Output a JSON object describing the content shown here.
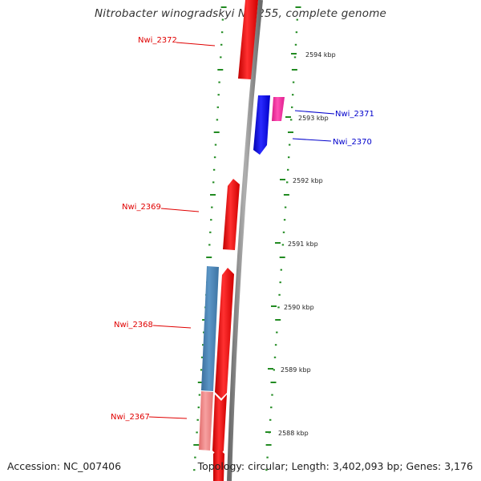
{
  "title": "Nitrobacter winogradskyi Nb-255, complete genome",
  "footer": {
    "accession": "Accession: NC_007406",
    "summary": "Topology: circular; Length: 3,402,093 bp; Genes: 3,176"
  },
  "colors": {
    "forward_gene": "#ff0000",
    "reverse_gene": "#0000ff",
    "pink_gene": "#ff2ea0",
    "steelblue_gene": "#4682b4",
    "lightred_gene": "#f08080",
    "backbone": "#7f7f7f",
    "ticks": "#228b22",
    "label_red": "#e00000",
    "label_blue": "#0000cc"
  },
  "scale": {
    "unit": "kbp",
    "ticks": [
      {
        "kbp": 2594,
        "label": "2594 kbp"
      },
      {
        "kbp": 2593,
        "label": "2593 kbp"
      },
      {
        "kbp": 2592,
        "label": "2592 kbp"
      },
      {
        "kbp": 2591,
        "label": "2591 kbp"
      },
      {
        "kbp": 2590,
        "label": "2590 kbp"
      },
      {
        "kbp": 2589,
        "label": "2589 kbp"
      },
      {
        "kbp": 2588,
        "label": "2588 kbp"
      }
    ]
  },
  "genes": [
    {
      "id": "Nwi_2372",
      "label": "Nwi_2372",
      "strand": "forward",
      "color_key": "forward_gene",
      "labelled": true
    },
    {
      "id": "Nwi_2371",
      "label": "Nwi_2371",
      "strand": "reverse",
      "color_key": "pink_gene",
      "labelled": true
    },
    {
      "id": "Nwi_2370",
      "label": "Nwi_2370",
      "strand": "reverse",
      "color_key": "reverse_gene",
      "labelled": true
    },
    {
      "id": "Nwi_2369",
      "label": "Nwi_2369",
      "strand": "forward",
      "color_key": "forward_gene",
      "labelled": true
    },
    {
      "id": "Nwi_2368",
      "label": "Nwi_2368",
      "strand": "forward",
      "color_key": "forward_gene",
      "labelled": true
    },
    {
      "id": "Nwi_2367",
      "label": "Nwi_2367",
      "strand": "forward",
      "color_key": "forward_gene",
      "labelled": true
    }
  ]
}
